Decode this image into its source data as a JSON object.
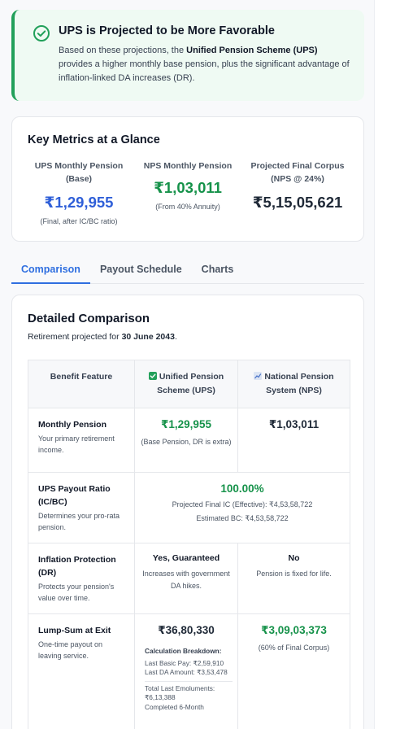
{
  "banner": {
    "title": "UPS is Projected to be More Favorable",
    "text_pre": "Based on these projections, the ",
    "text_bold": "Unified Pension Scheme (UPS)",
    "text_post": " provides a higher monthly base pension, plus the significant advantage of inflation-linked DA increases (DR).",
    "icon": "check-circle-icon"
  },
  "metrics": {
    "title": "Key Metrics at a Glance",
    "items": [
      {
        "label": "UPS Monthly Pension (Base)",
        "value": "₹1,29,955",
        "sub": "(Final, after IC/BC ratio)"
      },
      {
        "label": "NPS Monthly Pension",
        "value": "₹1,03,011",
        "sub": "(From 40% Annuity)"
      },
      {
        "label": "Projected Final Corpus (NPS @ 24%)",
        "value": "₹5,15,05,621",
        "sub": ""
      }
    ]
  },
  "tabs": [
    "Comparison",
    "Payout Schedule",
    "Charts"
  ],
  "detail": {
    "title": "Detailed Comparison",
    "retire_pre": "Retirement projected for ",
    "retire_date": "30 June 2043",
    "retire_post": ".",
    "headers": [
      "Benefit Feature",
      "Unified Pension Scheme (UPS)",
      "National Pension System (NPS)"
    ],
    "rows": {
      "monthly": {
        "feature": "Monthly Pension",
        "desc": "Your primary retirement income.",
        "ups": "₹1,29,955",
        "ups_note": "(Base Pension, DR is extra)",
        "nps": "₹1,03,011"
      },
      "ratio": {
        "feature": "UPS Payout Ratio (IC/BC)",
        "desc": "Determines your pro-rata pension.",
        "value": "100.00%",
        "ic": "Projected Final IC (Effective): ₹4,53,58,722",
        "bc": "Estimated BC: ₹4,53,58,722"
      },
      "inflation": {
        "feature": "Inflation Protection (DR)",
        "desc": "Protects your pension's value over time.",
        "ups": "Yes, Guaranteed",
        "ups_note": "Increases with government DA hikes.",
        "nps": "No",
        "nps_note": "Pension is fixed for life."
      },
      "lump": {
        "feature": "Lump-Sum at Exit",
        "desc": "One-time payout on leaving service.",
        "ups": "₹36,80,330",
        "breakdown_title": "Calculation Breakdown:",
        "breakdown": [
          "Last Basic Pay: ₹2,59,910",
          "Last DA Amount: ₹3,53,478"
        ],
        "breakdown2": [
          "Total Last Emoluments: ₹6,13,388",
          "Completed 6-Month"
        ],
        "nps": "₹3,09,03,373",
        "nps_note": "(60% of Final Corpus)"
      }
    }
  },
  "colors": {
    "ups_blue": "#2f5fd8",
    "nps_green": "#16924a",
    "accent_tab": "#2f6fe0",
    "banner_bg": "#effaf3"
  }
}
